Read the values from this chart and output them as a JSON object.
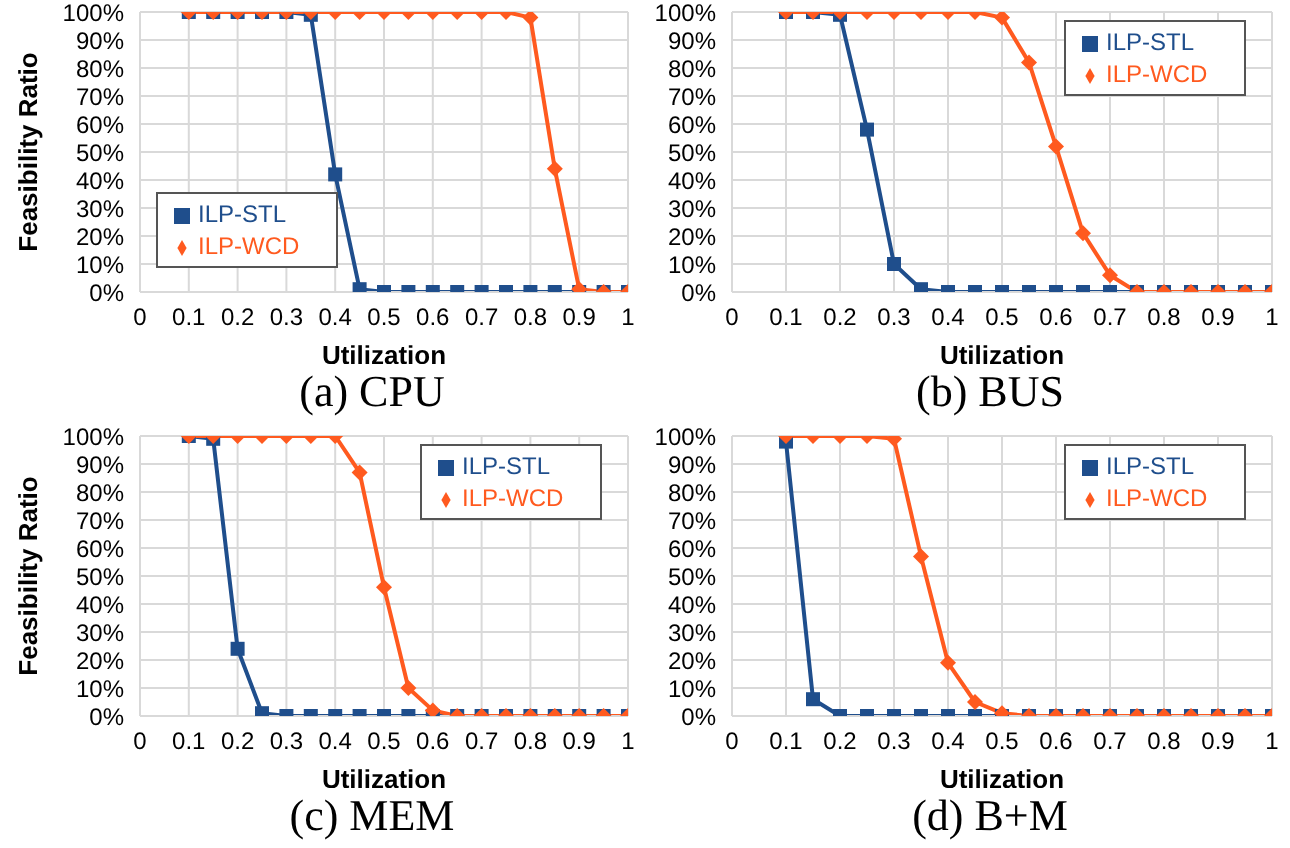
{
  "chart_data": [
    {
      "type": "line",
      "title": "(a) CPU",
      "xlabel": "Utilization",
      "ylabel": "Feasibility Ratio",
      "x": [
        0.1,
        0.15,
        0.2,
        0.25,
        0.3,
        0.35,
        0.4,
        0.45,
        0.5,
        0.55,
        0.6,
        0.65,
        0.7,
        0.75,
        0.8,
        0.85,
        0.9,
        0.95,
        1
      ],
      "xlim": [
        0,
        1
      ],
      "xticks": [
        0,
        0.1,
        0.2,
        0.3,
        0.4,
        0.5,
        0.6,
        0.7,
        0.8,
        0.9,
        1
      ],
      "ylim": [
        0,
        100
      ],
      "yticks": [
        {
          "value": 0,
          "label": "0%"
        },
        {
          "value": 10,
          "label": "10%"
        },
        {
          "value": 20,
          "label": "20%"
        },
        {
          "value": 30,
          "label": "30%"
        },
        {
          "value": 40,
          "label": "40%"
        },
        {
          "value": 50,
          "label": "50%"
        },
        {
          "value": 60,
          "label": "60%"
        },
        {
          "value": 70,
          "label": "70%"
        },
        {
          "value": 80,
          "label": "80%"
        },
        {
          "value": 90,
          "label": "90%"
        },
        {
          "value": 100,
          "label": "100%"
        }
      ],
      "grid": true,
      "legend": "bottom left",
      "series": [
        {
          "name": "ILP-STL",
          "color": "#1f4e8c",
          "marker": "square",
          "values": [
            100,
            100,
            100,
            100,
            100,
            99,
            42,
            1,
            0,
            0,
            0,
            0,
            0,
            0,
            0,
            0,
            0,
            0,
            0
          ]
        },
        {
          "name": "ILP-WCD",
          "color": "#ff5a1f",
          "marker": "diamond",
          "values": [
            100,
            100,
            100,
            100,
            100,
            100,
            100,
            100,
            100,
            100,
            100,
            100,
            100,
            100,
            98,
            44,
            1,
            0,
            0
          ]
        }
      ]
    },
    {
      "type": "line",
      "title": "(b) BUS",
      "xlabel": "Utilization",
      "x": [
        0.1,
        0.15,
        0.2,
        0.25,
        0.3,
        0.35,
        0.4,
        0.45,
        0.5,
        0.55,
        0.6,
        0.65,
        0.7,
        0.75,
        0.8,
        0.85,
        0.9,
        0.95,
        1
      ],
      "xlim": [
        0,
        1
      ],
      "xticks": [
        0,
        0.1,
        0.2,
        0.3,
        0.4,
        0.5,
        0.6,
        0.7,
        0.8,
        0.9,
        1
      ],
      "ylim": [
        0,
        100
      ],
      "yticks": [
        {
          "value": 0,
          "label": "0%"
        },
        {
          "value": 10,
          "label": "10%"
        },
        {
          "value": 20,
          "label": "20%"
        },
        {
          "value": 30,
          "label": "30%"
        },
        {
          "value": 40,
          "label": "40%"
        },
        {
          "value": 50,
          "label": "50%"
        },
        {
          "value": 60,
          "label": "60%"
        },
        {
          "value": 70,
          "label": "70%"
        },
        {
          "value": 80,
          "label": "80%"
        },
        {
          "value": 90,
          "label": "90%"
        },
        {
          "value": 100,
          "label": "100%"
        }
      ],
      "grid": true,
      "legend": "top right",
      "series": [
        {
          "name": "ILP-STL",
          "color": "#1f4e8c",
          "marker": "square",
          "values": [
            100,
            100,
            99,
            58,
            10,
            1,
            0,
            0,
            0,
            0,
            0,
            0,
            0,
            0,
            0,
            0,
            0,
            0,
            0
          ]
        },
        {
          "name": "ILP-WCD",
          "color": "#ff5a1f",
          "marker": "diamond",
          "values": [
            100,
            100,
            100,
            100,
            100,
            100,
            100,
            100,
            98,
            82,
            52,
            21,
            6,
            0,
            0,
            0,
            0,
            0,
            0
          ]
        }
      ]
    },
    {
      "type": "line",
      "title": "(c) MEM",
      "xlabel": "Utilization",
      "ylabel": "Feasibility Ratio",
      "x": [
        0.1,
        0.15,
        0.2,
        0.25,
        0.3,
        0.35,
        0.4,
        0.45,
        0.5,
        0.55,
        0.6,
        0.65,
        0.7,
        0.75,
        0.8,
        0.85,
        0.9,
        0.95,
        1
      ],
      "xlim": [
        0,
        1
      ],
      "xticks": [
        0,
        0.1,
        0.2,
        0.3,
        0.4,
        0.5,
        0.6,
        0.7,
        0.8,
        0.9,
        1
      ],
      "ylim": [
        0,
        100
      ],
      "yticks": [
        {
          "value": 0,
          "label": "0%"
        },
        {
          "value": 10,
          "label": "10%"
        },
        {
          "value": 20,
          "label": "20%"
        },
        {
          "value": 30,
          "label": "30%"
        },
        {
          "value": 40,
          "label": "40%"
        },
        {
          "value": 50,
          "label": "50%"
        },
        {
          "value": 60,
          "label": "60%"
        },
        {
          "value": 70,
          "label": "70%"
        },
        {
          "value": 80,
          "label": "80%"
        },
        {
          "value": 90,
          "label": "90%"
        },
        {
          "value": 100,
          "label": "100%"
        }
      ],
      "grid": true,
      "legend": "top right",
      "series": [
        {
          "name": "ILP-STL",
          "color": "#1f4e8c",
          "marker": "square",
          "values": [
            100,
            99,
            24,
            1,
            0,
            0,
            0,
            0,
            0,
            0,
            0,
            0,
            0,
            0,
            0,
            0,
            0,
            0,
            0
          ]
        },
        {
          "name": "ILP-WCD",
          "color": "#ff5a1f",
          "marker": "diamond",
          "values": [
            100,
            100,
            100,
            100,
            100,
            100,
            100,
            87,
            46,
            10,
            2,
            0,
            0,
            0,
            0,
            0,
            0,
            0,
            0
          ]
        }
      ]
    },
    {
      "type": "line",
      "title": "(d) B+M",
      "xlabel": "Utilization",
      "x": [
        0.1,
        0.15,
        0.2,
        0.25,
        0.3,
        0.35,
        0.4,
        0.45,
        0.5,
        0.55,
        0.6,
        0.65,
        0.7,
        0.75,
        0.8,
        0.85,
        0.9,
        0.95,
        1
      ],
      "xlim": [
        0,
        1
      ],
      "xticks": [
        0,
        0.1,
        0.2,
        0.3,
        0.4,
        0.5,
        0.6,
        0.7,
        0.8,
        0.9,
        1
      ],
      "ylim": [
        0,
        100
      ],
      "yticks": [
        {
          "value": 0,
          "label": "0%"
        },
        {
          "value": 10,
          "label": "10%"
        },
        {
          "value": 20,
          "label": "20%"
        },
        {
          "value": 30,
          "label": "30%"
        },
        {
          "value": 40,
          "label": "40%"
        },
        {
          "value": 50,
          "label": "50%"
        },
        {
          "value": 60,
          "label": "60%"
        },
        {
          "value": 70,
          "label": "70%"
        },
        {
          "value": 80,
          "label": "80%"
        },
        {
          "value": 90,
          "label": "90%"
        },
        {
          "value": 100,
          "label": "100%"
        }
      ],
      "grid": true,
      "legend": "top right",
      "series": [
        {
          "name": "ILP-STL",
          "color": "#1f4e8c",
          "marker": "square",
          "values": [
            98,
            6,
            0,
            0,
            0,
            0,
            0,
            0,
            0,
            0,
            0,
            0,
            0,
            0,
            0,
            0,
            0,
            0,
            0
          ]
        },
        {
          "name": "ILP-WCD",
          "color": "#ff5a1f",
          "marker": "diamond",
          "values": [
            100,
            100,
            100,
            100,
            99,
            57,
            19,
            5,
            1,
            0,
            0,
            0,
            0,
            0,
            0,
            0,
            0,
            0,
            0
          ]
        }
      ]
    }
  ]
}
